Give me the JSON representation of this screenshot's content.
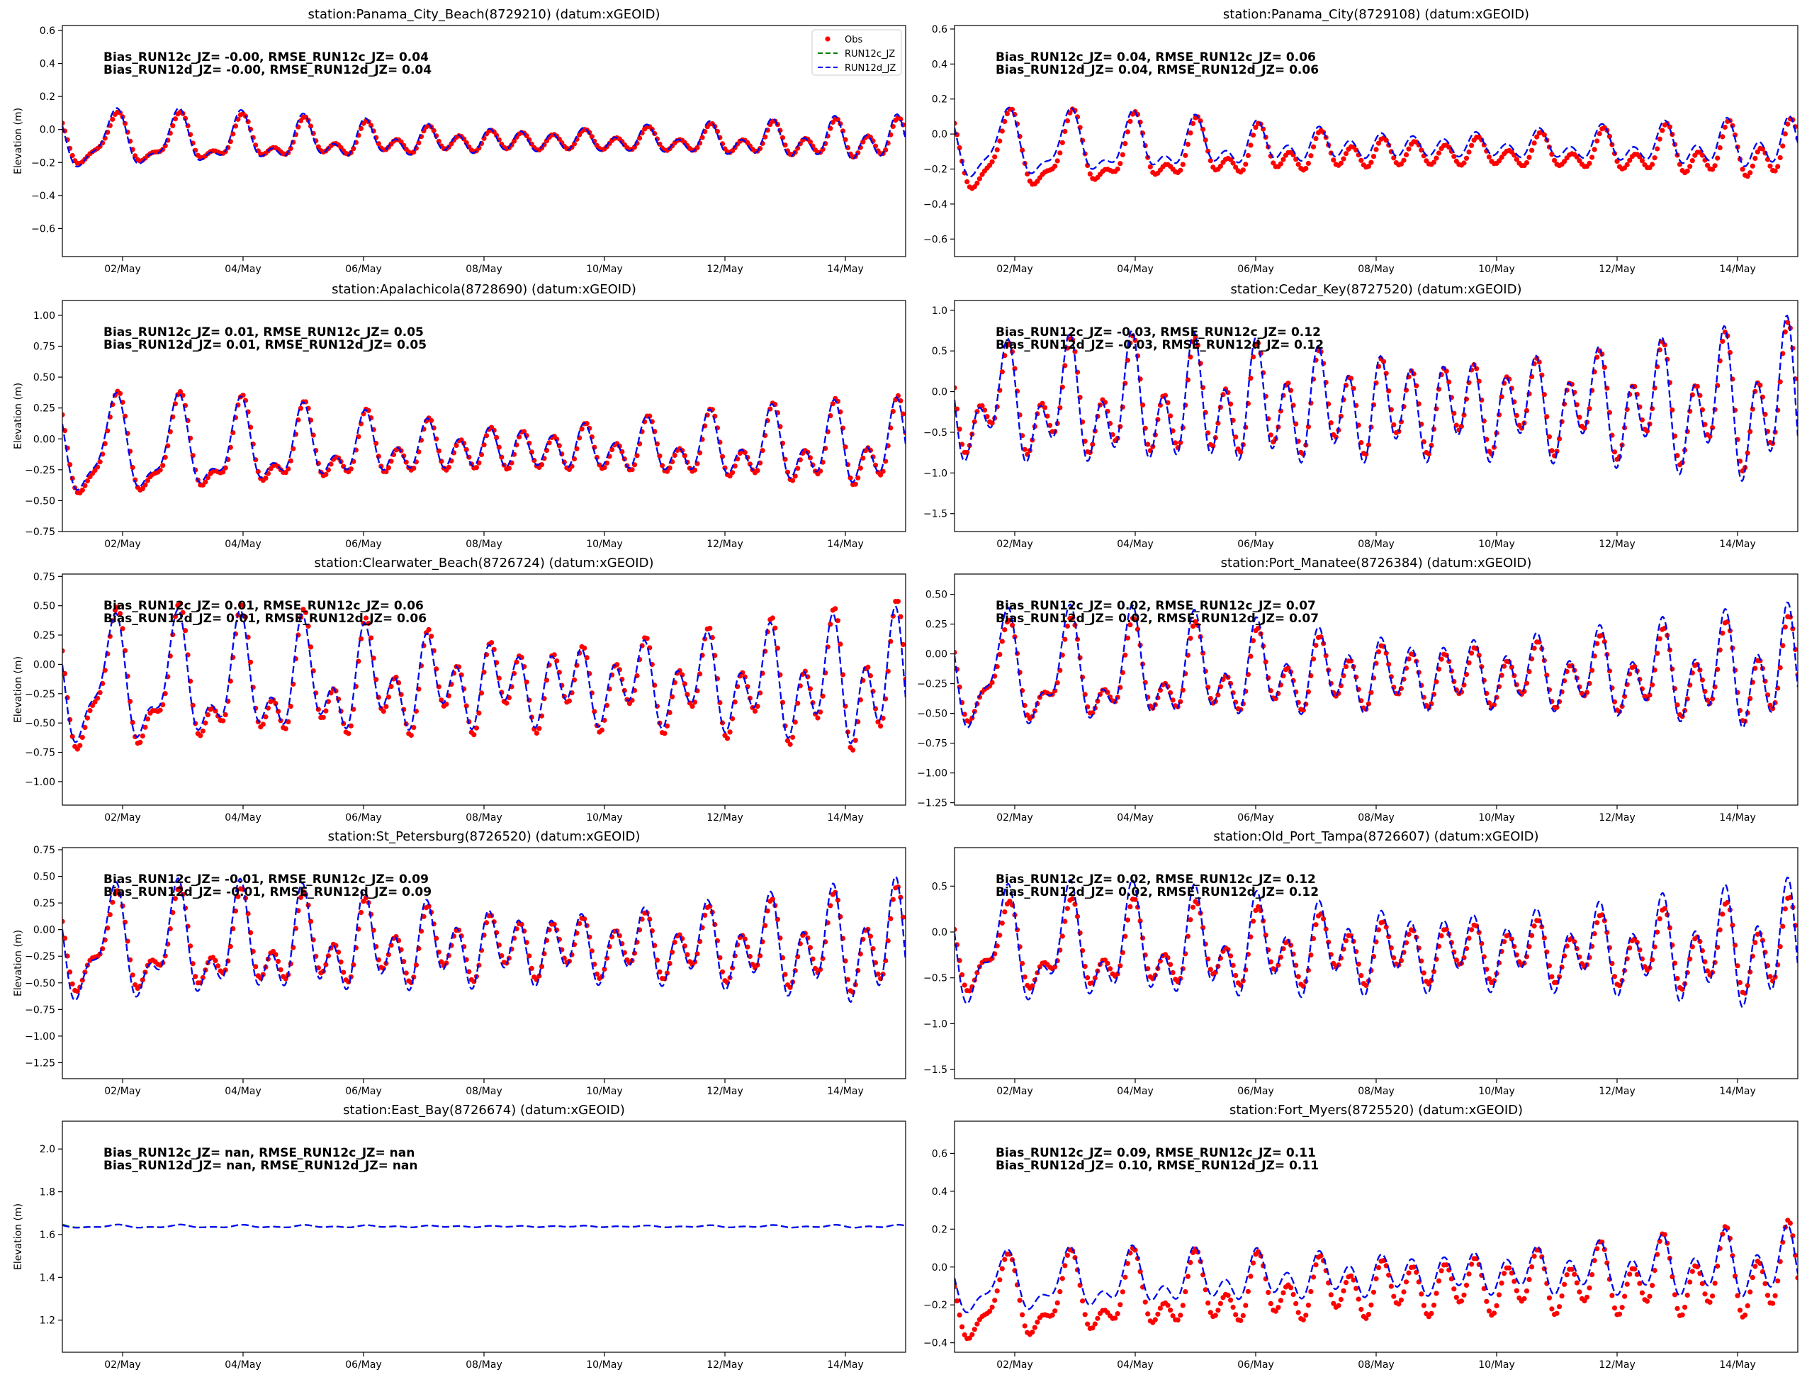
{
  "figure": {
    "background": "#ffffff"
  },
  "legend": {
    "placement": "upper-right of first panel",
    "entries": [
      {
        "label": "Obs",
        "color": "#ff0000",
        "style": "dots"
      },
      {
        "label": "RUN12c_JZ",
        "color": "#008000",
        "style": "dashed"
      },
      {
        "label": "RUN12d_JZ",
        "color": "#0000ff",
        "style": "dashed"
      }
    ]
  },
  "chart_data": [
    {
      "type": "line",
      "title": "station:Panama_City_Beach(8729210) (datum:xGEOID)",
      "ylabel": "Elevation (m)",
      "ylim": [
        -0.77,
        0.63
      ],
      "yticks": [
        -0.6,
        -0.4,
        -0.2,
        0.0,
        0.2,
        0.4,
        0.6
      ],
      "ytick_labels": [
        "−0.6",
        "−0.4",
        "−0.2",
        "0.0",
        "0.2",
        "0.4",
        "0.6"
      ],
      "xlim": [
        "2024-05-01 00:00",
        "2024-05-15 00:00"
      ],
      "xticks": [
        "2024-05-02",
        "2024-05-04",
        "2024-05-06",
        "2024-05-08",
        "2024-05-10",
        "2024-05-12",
        "2024-05-14"
      ],
      "xtick_labels": [
        "02/May",
        "04/May",
        "06/May",
        "08/May",
        "10/May",
        "12/May",
        "14/May"
      ],
      "stats": [
        "Bias_RUN12c_JZ= -0.00, RMSE_RUN12c_JZ=  0.04",
        "Bias_RUN12d_JZ= -0.00, RMSE_RUN12d_JZ=  0.04"
      ],
      "model": {
        "mean": -0.07,
        "trend": 0.0,
        "A1": 0.05,
        "A2": 0.07,
        "Ad": 0.11,
        "Ad_end": 0.01,
        "As_end": 0.1,
        "As": 0.03,
        "phase": 1.2
      },
      "obs": {
        "scale": 0.88,
        "offset": 0.0,
        "lag": 0.6,
        "missing": false
      },
      "model_c": {
        "offset": 0.0
      }
    },
    {
      "type": "line",
      "title": "station:Panama_City(8729108) (datum:xGEOID)",
      "ylabel": "",
      "ylim": [
        -0.7,
        0.62
      ],
      "yticks": [
        -0.6,
        -0.4,
        -0.2,
        0.0,
        0.2,
        0.4,
        0.6
      ],
      "ytick_labels": [
        "−0.6",
        "−0.4",
        "−0.2",
        "0.0",
        "0.2",
        "0.4",
        "0.6"
      ],
      "xlim": [
        "2024-05-01 00:00",
        "2024-05-15 00:00"
      ],
      "xticks": [
        "2024-05-02",
        "2024-05-04",
        "2024-05-06",
        "2024-05-08",
        "2024-05-10",
        "2024-05-12",
        "2024-05-14"
      ],
      "xtick_labels": [
        "02/May",
        "04/May",
        "06/May",
        "08/May",
        "10/May",
        "12/May",
        "14/May"
      ],
      "stats": [
        "Bias_RUN12c_JZ=  0.04, RMSE_RUN12c_JZ=  0.06",
        "Bias_RUN12d_JZ=  0.04, RMSE_RUN12d_JZ=  0.06"
      ],
      "model": {
        "mean": -0.07,
        "trend": 0.0,
        "A1": 0.06,
        "A2": 0.08,
        "Ad": 0.12,
        "Ad_end": 0.01,
        "As_end": 0.1,
        "As": 0.03,
        "phase": 1.2
      },
      "obs": {
        "scale": 1.15,
        "offset": -0.04,
        "lag": 0.8,
        "missing": false
      },
      "model_c": {
        "offset": 0.0
      }
    },
    {
      "type": "line",
      "title": "station:Apalachicola(8728690) (datum:xGEOID)",
      "ylabel": "Elevation (m)",
      "ylim": [
        -0.75,
        1.12
      ],
      "yticks": [
        -0.75,
        -0.5,
        -0.25,
        0.0,
        0.25,
        0.5,
        0.75,
        1.0
      ],
      "ytick_labels": [
        "−0.75",
        "−0.50",
        "−0.25",
        "0.00",
        "0.25",
        "0.50",
        "0.75",
        "1.00"
      ],
      "xlim": [
        "2024-05-01 00:00",
        "2024-05-15 00:00"
      ],
      "xticks": [
        "2024-05-02",
        "2024-05-04",
        "2024-05-06",
        "2024-05-08",
        "2024-05-10",
        "2024-05-12",
        "2024-05-14"
      ],
      "xtick_labels": [
        "02/May",
        "04/May",
        "06/May",
        "08/May",
        "10/May",
        "12/May",
        "14/May"
      ],
      "stats": [
        "Bias_RUN12c_JZ=  0.01, RMSE_RUN12c_JZ=  0.05",
        "Bias_RUN12d_JZ=  0.01, RMSE_RUN12d_JZ=  0.05"
      ],
      "model": {
        "mean": -0.08,
        "trend": 0.0,
        "A1": 0.14,
        "A2": 0.1,
        "Ad": 0.22,
        "Ad_end": 0.06,
        "As_end": 0.22,
        "As": 0.08,
        "phase": 1.2
      },
      "obs": {
        "scale": 1.05,
        "offset": -0.01,
        "lag": 0.6,
        "missing": false
      },
      "model_c": {
        "offset": 0.0
      }
    },
    {
      "type": "line",
      "title": "station:Cedar_Key(8727520) (datum:xGEOID)",
      "ylabel": "",
      "ylim": [
        -1.72,
        1.12
      ],
      "yticks": [
        -1.5,
        -1.0,
        -0.5,
        0.0,
        0.5,
        1.0
      ],
      "ytick_labels": [
        "−1.5",
        "−1.0",
        "−0.5",
        "0.0",
        "0.5",
        "1.0"
      ],
      "xlim": [
        "2024-05-01 00:00",
        "2024-05-15 00:00"
      ],
      "xticks": [
        "2024-05-02",
        "2024-05-04",
        "2024-05-06",
        "2024-05-08",
        "2024-05-10",
        "2024-05-12",
        "2024-05-14"
      ],
      "xtick_labels": [
        "02/May",
        "04/May",
        "06/May",
        "08/May",
        "10/May",
        "12/May",
        "14/May"
      ],
      "stats": [
        "Bias_RUN12c_JZ= -0.03, RMSE_RUN12c_JZ=  0.12",
        "Bias_RUN12d_JZ= -0.03, RMSE_RUN12d_JZ=  0.12"
      ],
      "model": {
        "mean": -0.2,
        "trend": 0.0,
        "A1": 0.15,
        "A2": 0.45,
        "Ad": 0.32,
        "Ad_end": 0.3,
        "As_end": 0.75,
        "As": 0.3,
        "phase": 1.5
      },
      "obs": {
        "scale": 0.9,
        "offset": 0.03,
        "lag": 0.5,
        "missing": false
      },
      "model_c": {
        "offset": 0.0
      }
    },
    {
      "type": "line",
      "title": "station:Clearwater_Beach(8726724) (datum:xGEOID)",
      "ylabel": "Elevation (m)",
      "ylim": [
        -1.2,
        0.77
      ],
      "yticks": [
        -1.0,
        -0.75,
        -0.5,
        -0.25,
        0.0,
        0.25,
        0.5,
        0.75
      ],
      "ytick_labels": [
        "−1.00",
        "−0.75",
        "−0.50",
        "−0.25",
        "0.00",
        "0.25",
        "0.50",
        "0.75"
      ],
      "xlim": [
        "2024-05-01 00:00",
        "2024-05-15 00:00"
      ],
      "xticks": [
        "2024-05-02",
        "2024-05-04",
        "2024-05-06",
        "2024-05-08",
        "2024-05-10",
        "2024-05-12",
        "2024-05-14"
      ],
      "xtick_labels": [
        "02/May",
        "04/May",
        "06/May",
        "08/May",
        "10/May",
        "12/May",
        "14/May"
      ],
      "stats": [
        "Bias_RUN12c_JZ=  0.01, RMSE_RUN12c_JZ=  0.06",
        "Bias_RUN12d_JZ=  0.01, RMSE_RUN12d_JZ=  0.06"
      ],
      "model": {
        "mean": -0.17,
        "trend": 0.0,
        "A1": 0.12,
        "A2": 0.25,
        "Ad": 0.35,
        "Ad_end": 0.15,
        "As_end": 0.42,
        "As": 0.1,
        "phase": 1.4
      },
      "obs": {
        "scale": 1.1,
        "offset": -0.01,
        "lag": 0.6,
        "missing": false
      },
      "model_c": {
        "offset": 0.0
      }
    },
    {
      "type": "line",
      "title": "station:Port_Manatee(8726384) (datum:xGEOID)",
      "ylabel": "",
      "ylim": [
        -1.27,
        0.67
      ],
      "yticks": [
        -1.25,
        -1.0,
        -0.75,
        -0.5,
        -0.25,
        0.0,
        0.25,
        0.5
      ],
      "ytick_labels": [
        "−1.25",
        "−1.00",
        "−0.75",
        "−0.50",
        "−0.25",
        "0.00",
        "0.25",
        "0.50"
      ],
      "xlim": [
        "2024-05-01 00:00",
        "2024-05-15 00:00"
      ],
      "xticks": [
        "2024-05-02",
        "2024-05-04",
        "2024-05-06",
        "2024-05-08",
        "2024-05-10",
        "2024-05-12",
        "2024-05-14"
      ],
      "xtick_labels": [
        "02/May",
        "04/May",
        "06/May",
        "08/May",
        "10/May",
        "12/May",
        "14/May"
      ],
      "stats": [
        "Bias_RUN12c_JZ=  0.02, RMSE_RUN12c_JZ=  0.07",
        "Bias_RUN12d_JZ=  0.02, RMSE_RUN12d_JZ=  0.07"
      ],
      "model": {
        "mean": -0.17,
        "trend": 0.0,
        "A1": 0.12,
        "A2": 0.25,
        "Ad": 0.3,
        "Ad_end": 0.1,
        "As_end": 0.4,
        "As": 0.1,
        "phase": 1.4
      },
      "obs": {
        "scale": 0.85,
        "offset": -0.02,
        "lag": 0.5,
        "missing": false
      },
      "model_c": {
        "offset": 0.0
      }
    },
    {
      "type": "line",
      "title": "station:St_Petersburg(8726520) (datum:xGEOID)",
      "ylabel": "Elevation (m)",
      "ylim": [
        -1.4,
        0.77
      ],
      "yticks": [
        -1.25,
        -1.0,
        -0.75,
        -0.5,
        -0.25,
        0.0,
        0.25,
        0.5,
        0.75
      ],
      "ytick_labels": [
        "−1.25",
        "−1.00",
        "−0.75",
        "−0.50",
        "−0.25",
        "0.00",
        "0.25",
        "0.50",
        "0.75"
      ],
      "xlim": [
        "2024-05-01 00:00",
        "2024-05-15 00:00"
      ],
      "xticks": [
        "2024-05-02",
        "2024-05-04",
        "2024-05-06",
        "2024-05-08",
        "2024-05-10",
        "2024-05-12",
        "2024-05-14"
      ],
      "xtick_labels": [
        "02/May",
        "04/May",
        "06/May",
        "08/May",
        "10/May",
        "12/May",
        "14/May"
      ],
      "stats": [
        "Bias_RUN12c_JZ= -0.01, RMSE_RUN12c_JZ=  0.09",
        "Bias_RUN12d_JZ= -0.01, RMSE_RUN12d_JZ=  0.09"
      ],
      "model": {
        "mean": -0.17,
        "trend": 0.0,
        "A1": 0.12,
        "A2": 0.3,
        "Ad": 0.33,
        "Ad_end": 0.12,
        "As_end": 0.45,
        "As": 0.12,
        "phase": 1.4
      },
      "obs": {
        "scale": 0.85,
        "offset": 0.01,
        "lag": 0.6,
        "missing": false
      },
      "model_c": {
        "offset": 0.0
      }
    },
    {
      "type": "line",
      "title": "station:Old_Port_Tampa(8726607) (datum:xGEOID)",
      "ylabel": "",
      "ylim": [
        -1.6,
        0.92
      ],
      "yticks": [
        -1.5,
        -1.0,
        -0.5,
        0.0,
        0.5
      ],
      "ytick_labels": [
        "−1.5",
        "−1.0",
        "−0.5",
        "0.0",
        "0.5"
      ],
      "xlim": [
        "2024-05-01 00:00",
        "2024-05-15 00:00"
      ],
      "xticks": [
        "2024-05-02",
        "2024-05-04",
        "2024-05-06",
        "2024-05-08",
        "2024-05-10",
        "2024-05-12",
        "2024-05-14"
      ],
      "xtick_labels": [
        "02/May",
        "04/May",
        "06/May",
        "08/May",
        "10/May",
        "12/May",
        "14/May"
      ],
      "stats": [
        "Bias_RUN12c_JZ=  0.02, RMSE_RUN12c_JZ=  0.12",
        "Bias_RUN12d_JZ=  0.02, RMSE_RUN12d_JZ=  0.12"
      ],
      "model": {
        "mean": -0.2,
        "trend": 0.0,
        "A1": 0.12,
        "A2": 0.35,
        "Ad": 0.4,
        "Ad_end": 0.15,
        "As_end": 0.55,
        "As": 0.15,
        "phase": 1.4
      },
      "obs": {
        "scale": 0.75,
        "offset": -0.01,
        "lag": 0.6,
        "missing": false
      },
      "model_c": {
        "offset": 0.0
      }
    },
    {
      "type": "line",
      "title": "station:East_Bay(8726674) (datum:xGEOID)",
      "ylabel": "Elevation (m)",
      "ylim": [
        1.05,
        2.13
      ],
      "yticks": [
        1.2,
        1.4,
        1.6,
        1.8,
        2.0
      ],
      "ytick_labels": [
        "1.2",
        "1.4",
        "1.6",
        "1.8",
        "2.0"
      ],
      "xlim": [
        "2024-05-01 00:00",
        "2024-05-15 00:00"
      ],
      "xticks": [
        "2024-05-02",
        "2024-05-04",
        "2024-05-06",
        "2024-05-08",
        "2024-05-10",
        "2024-05-12",
        "2024-05-14"
      ],
      "xtick_labels": [
        "02/May",
        "04/May",
        "06/May",
        "08/May",
        "10/May",
        "12/May",
        "14/May"
      ],
      "stats": [
        "Bias_RUN12c_JZ=   nan, RMSE_RUN12c_JZ=   nan",
        "Bias_RUN12d_JZ=   nan, RMSE_RUN12d_JZ=   nan"
      ],
      "model": {
        "mean": 1.638,
        "trend": 0.0,
        "A1": 0.002,
        "A2": 0.003,
        "Ad": 0.004,
        "Ad_end": 0.002,
        "As_end": 0.004,
        "As": 0.002,
        "phase": 1.0
      },
      "obs": {
        "scale": 1.0,
        "offset": 0.0,
        "lag": 0.0,
        "missing": true
      },
      "model_c": {
        "offset": 0.004
      }
    },
    {
      "type": "line",
      "title": "station:Fort_Myers(8725520) (datum:xGEOID)",
      "ylabel": "",
      "ylim": [
        -0.45,
        0.77
      ],
      "yticks": [
        -0.4,
        -0.2,
        0.0,
        0.2,
        0.4,
        0.6
      ],
      "ytick_labels": [
        "−0.4",
        "−0.2",
        "0.0",
        "0.2",
        "0.4",
        "0.6"
      ],
      "xlim": [
        "2024-05-01 00:00",
        "2024-05-15 00:00"
      ],
      "xticks": [
        "2024-05-02",
        "2024-05-04",
        "2024-05-06",
        "2024-05-08",
        "2024-05-10",
        "2024-05-12",
        "2024-05-14"
      ],
      "xtick_labels": [
        "02/May",
        "04/May",
        "06/May",
        "08/May",
        "10/May",
        "12/May",
        "14/May"
      ],
      "stats": [
        "Bias_RUN12c_JZ=  0.09, RMSE_RUN12c_JZ=  0.11",
        "Bias_RUN12d_JZ=  0.10, RMSE_RUN12d_JZ=  0.11"
      ],
      "model": {
        "mean": -0.1,
        "trend": 0.008,
        "A1": 0.04,
        "A2": 0.05,
        "Ad": 0.1,
        "Ad_end": 0.04,
        "As_end": 0.14,
        "As": 0.04,
        "phase": 1.4
      },
      "obs": {
        "scale": 1.35,
        "offset": -0.09,
        "lag": 0.4,
        "missing": false
      },
      "model_c": {
        "offset": 0.0
      }
    }
  ]
}
